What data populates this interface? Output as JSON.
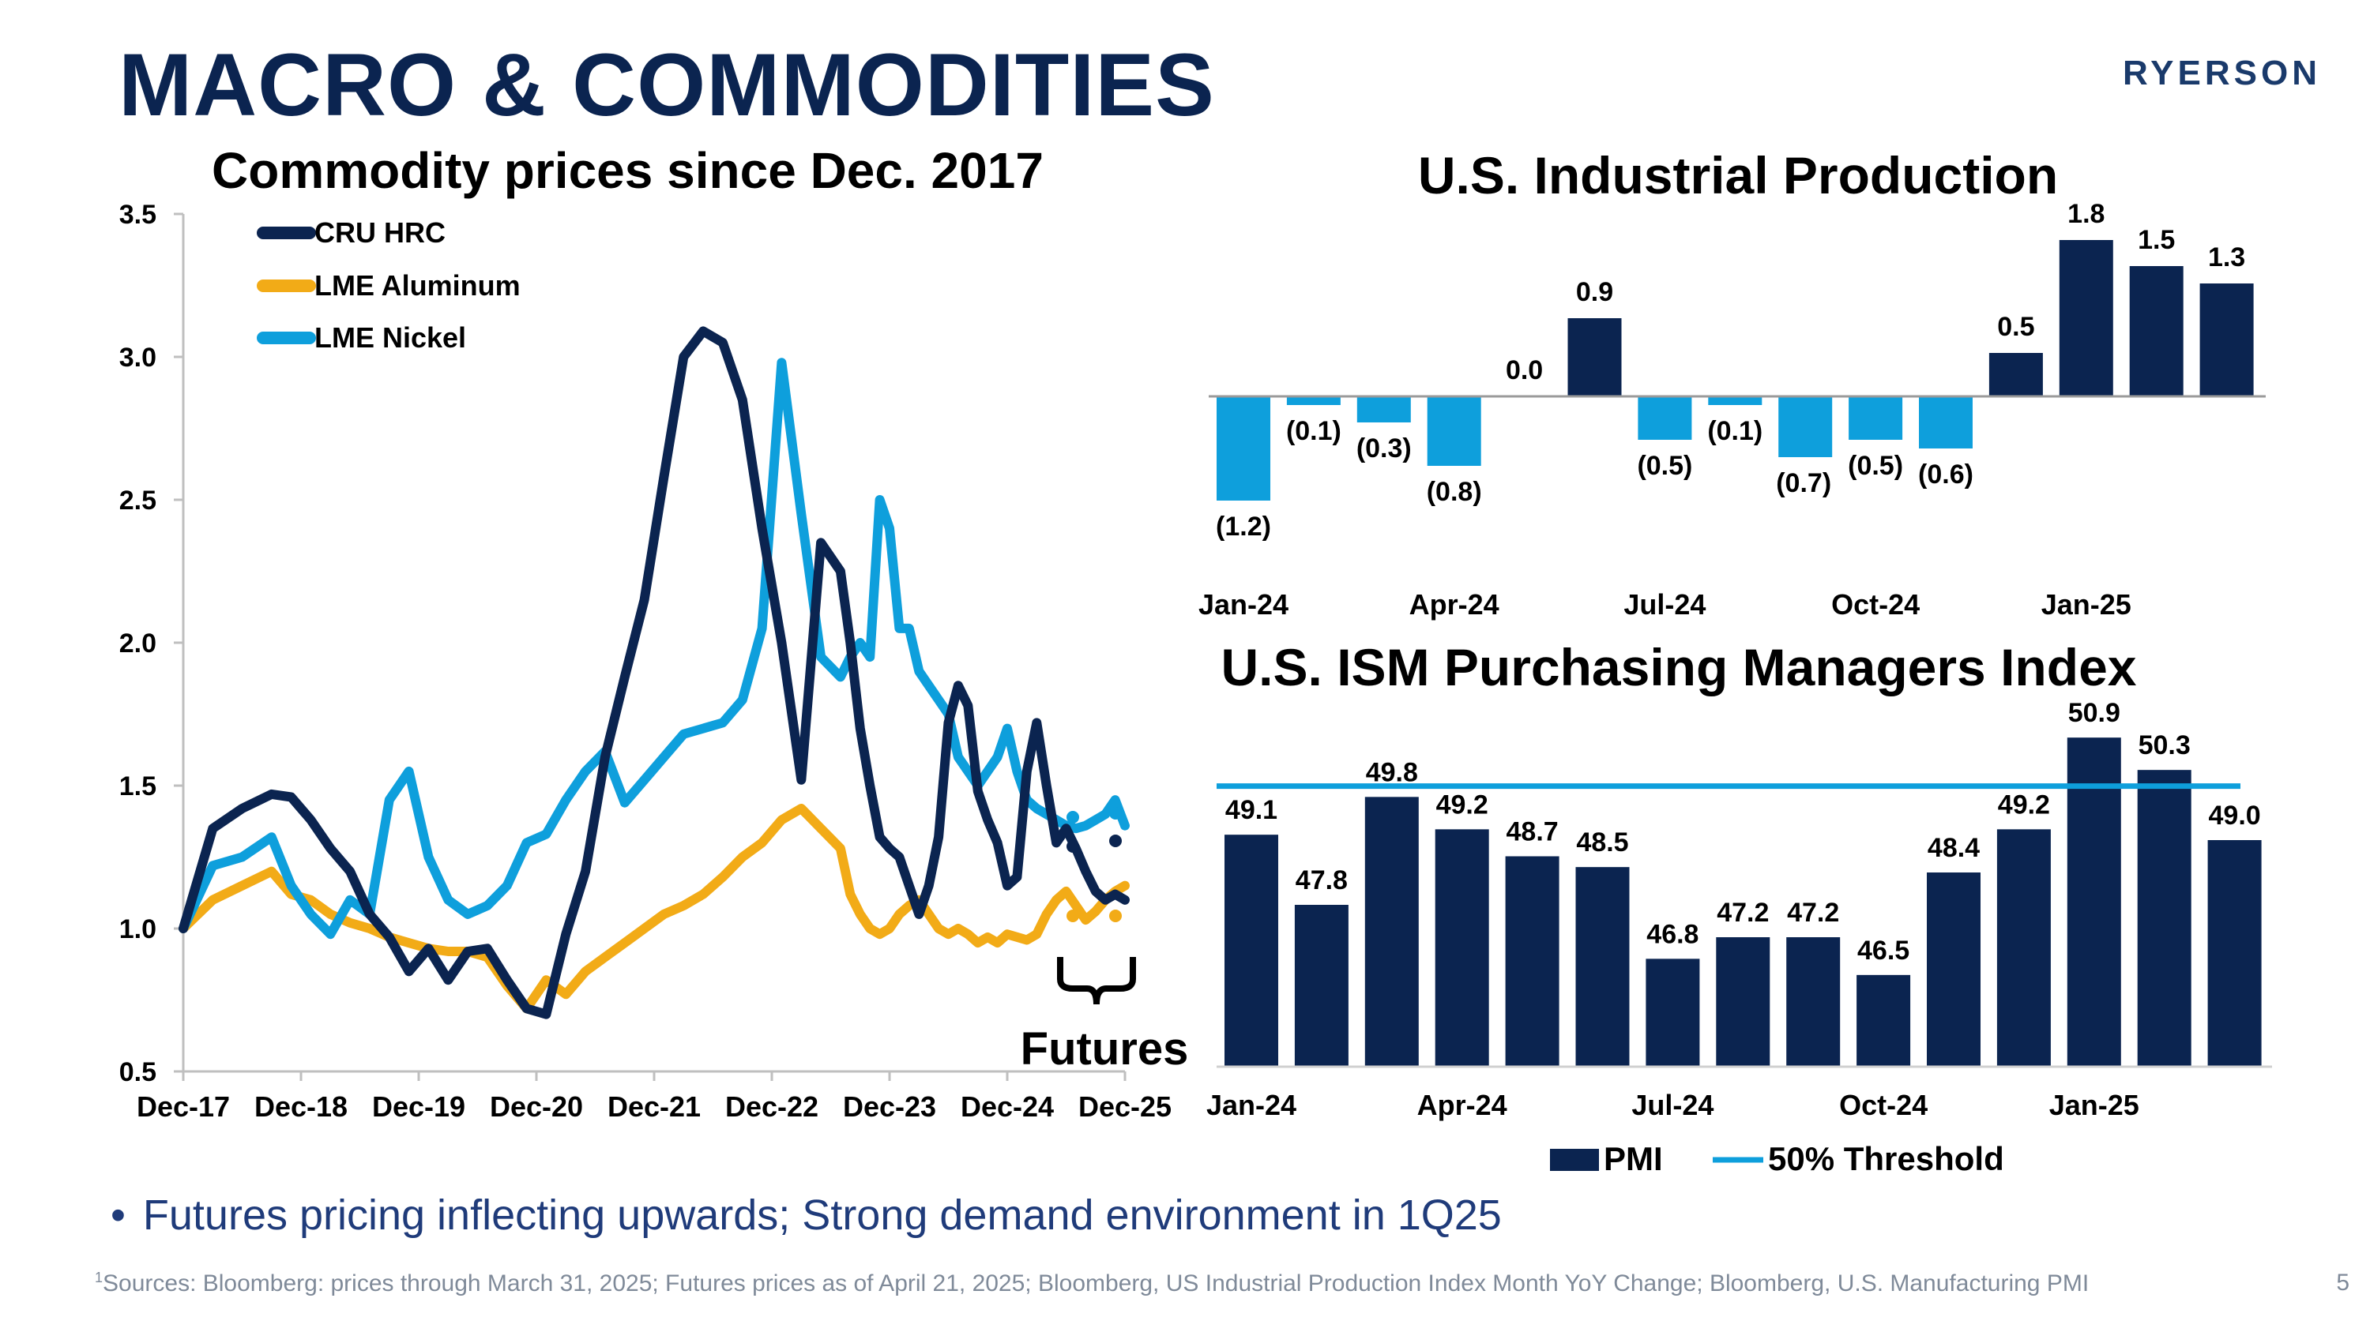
{
  "page_title": "MACRO & COMMODITIES",
  "logo_text": "RYERSON",
  "bullet": "Futures pricing inflecting upwards; Strong demand environment in 1Q25",
  "footnote_sup": "1",
  "footnote": "Sources: Bloomberg: prices through March 31, 2025; Futures prices as of April 21, 2025; Bloomberg, US Industrial Production Index Month YoY Change; Bloomberg, U.S. Manufacturing PMI",
  "page_number": "5",
  "colors": {
    "navy": "#0b2450",
    "blue": "#0e9fdc",
    "gold": "#f2ab17",
    "bar_navy": "#0b2450"
  },
  "chart_data": [
    {
      "type": "line",
      "title": "Commodity prices since Dec. 2017",
      "ylim": [
        0.5,
        3.5
      ],
      "yticks": [
        "3.5",
        "3.0",
        "2.5",
        "2.0",
        "1.5",
        "1.0",
        "0.5"
      ],
      "ytick_values": [
        3.5,
        3.0,
        2.5,
        2.0,
        1.5,
        1.0,
        0.5
      ],
      "xticks": [
        "Dec-17",
        "Dec-18",
        "Dec-19",
        "Dec-20",
        "Dec-21",
        "Dec-22",
        "Dec-23",
        "Dec-24",
        "Dec-25"
      ],
      "xlim": [
        0,
        96
      ],
      "futures_label": "Futures",
      "series": [
        {
          "name": "CRU HRC",
          "color": "#0b2450",
          "x": [
            0,
            3,
            6,
            9,
            11,
            13,
            15,
            17,
            19,
            21,
            23,
            25,
            27,
            29,
            31,
            33,
            35,
            37,
            39,
            41,
            43,
            45,
            47,
            49,
            51,
            53,
            55,
            57,
            59,
            61,
            63,
            65,
            67,
            68,
            69,
            70,
            71,
            72,
            73,
            74,
            75,
            76,
            77,
            78,
            79,
            80,
            81,
            82,
            83,
            84,
            85,
            86,
            87,
            88,
            89,
            90,
            91,
            92,
            93,
            94,
            95,
            96
          ],
          "y": [
            1.0,
            1.35,
            1.42,
            1.47,
            1.46,
            1.38,
            1.28,
            1.2,
            1.05,
            0.97,
            0.85,
            0.93,
            0.82,
            0.92,
            0.93,
            0.82,
            0.72,
            0.7,
            0.98,
            1.2,
            1.6,
            1.88,
            2.15,
            2.58,
            3.0,
            3.09,
            3.05,
            2.85,
            2.4,
            2.0,
            1.52,
            2.35,
            2.25,
            2.0,
            1.7,
            1.5,
            1.32,
            1.28,
            1.25,
            1.15,
            1.05,
            1.15,
            1.32,
            1.72,
            1.85,
            1.78,
            1.48,
            1.38,
            1.3,
            1.15,
            1.18,
            1.55,
            1.72,
            1.5,
            1.3,
            1.35,
            1.28,
            1.2,
            1.13,
            1.1,
            1.12,
            1.1
          ]
        },
        {
          "name": "LME Aluminum",
          "color": "#f2ab17",
          "x": [
            0,
            3,
            6,
            9,
            11,
            13,
            15,
            17,
            19,
            21,
            23,
            25,
            27,
            29,
            31,
            33,
            35,
            37,
            39,
            41,
            43,
            45,
            47,
            49,
            51,
            53,
            55,
            57,
            59,
            61,
            63,
            65,
            67,
            68,
            69,
            70,
            71,
            72,
            73,
            74,
            75,
            76,
            77,
            78,
            79,
            80,
            81,
            82,
            83,
            84,
            85,
            86,
            87,
            88,
            89,
            90,
            91,
            92,
            93,
            94,
            95,
            96
          ],
          "y": [
            1.0,
            1.1,
            1.15,
            1.2,
            1.12,
            1.1,
            1.05,
            1.02,
            1.0,
            0.97,
            0.95,
            0.93,
            0.92,
            0.92,
            0.9,
            0.8,
            0.72,
            0.82,
            0.77,
            0.85,
            0.9,
            0.95,
            1.0,
            1.05,
            1.08,
            1.12,
            1.18,
            1.25,
            1.3,
            1.38,
            1.42,
            1.35,
            1.28,
            1.12,
            1.05,
            1.0,
            0.98,
            1.0,
            1.05,
            1.08,
            1.1,
            1.05,
            1.0,
            0.98,
            1.0,
            0.98,
            0.95,
            0.97,
            0.95,
            0.98,
            0.97,
            0.96,
            0.98,
            1.05,
            1.1,
            1.13,
            1.08,
            1.03,
            1.06,
            1.1,
            1.13,
            1.15
          ]
        },
        {
          "name": "LME Nickel",
          "color": "#0e9fdc",
          "x": [
            0,
            3,
            6,
            9,
            11,
            13,
            15,
            17,
            19,
            21,
            23,
            25,
            27,
            29,
            31,
            33,
            35,
            37,
            39,
            41,
            43,
            45,
            47,
            49,
            51,
            53,
            55,
            57,
            59,
            61,
            63,
            65,
            67,
            68,
            69,
            70,
            71,
            72,
            73,
            74,
            75,
            76,
            77,
            78,
            79,
            80,
            81,
            82,
            83,
            84,
            85,
            86,
            87,
            88,
            89,
            90,
            91,
            92,
            93,
            94,
            95,
            96
          ],
          "y": [
            1.0,
            1.22,
            1.25,
            1.32,
            1.15,
            1.05,
            0.98,
            1.1,
            1.05,
            1.45,
            1.55,
            1.25,
            1.1,
            1.05,
            1.08,
            1.15,
            1.3,
            1.33,
            1.45,
            1.55,
            1.62,
            1.44,
            1.52,
            1.6,
            1.68,
            1.7,
            1.72,
            1.8,
            2.05,
            2.98,
            2.45,
            1.95,
            1.88,
            1.95,
            2.0,
            1.95,
            2.5,
            2.4,
            2.05,
            2.05,
            1.9,
            1.85,
            1.8,
            1.75,
            1.6,
            1.55,
            1.5,
            1.55,
            1.6,
            1.7,
            1.55,
            1.45,
            1.42,
            1.4,
            1.38,
            1.36,
            1.35,
            1.36,
            1.38,
            1.4,
            1.45,
            1.36
          ]
        }
      ]
    },
    {
      "type": "bar",
      "title": "U.S. Industrial Production",
      "values": [
        -1.2,
        -0.1,
        -0.3,
        -0.8,
        0.0,
        0.9,
        -0.5,
        -0.1,
        -0.7,
        -0.5,
        -0.6,
        0.5,
        1.8,
        1.5,
        1.3
      ],
      "labels": [
        "(1.2)",
        "(0.1)",
        "(0.3)",
        "(0.8)",
        "0.0",
        "0.9",
        "(0.5)",
        "(0.1)",
        "(0.7)",
        "(0.5)",
        "(0.6)",
        "0.5",
        "1.8",
        "1.5",
        "1.3"
      ],
      "xticks": [
        "Jan-24",
        "Apr-24",
        "Jul-24",
        "Oct-24",
        "Jan-25"
      ],
      "xtick_index": [
        0,
        3,
        6,
        9,
        12
      ]
    },
    {
      "type": "bar",
      "title": "U.S. ISM Purchasing Managers Index",
      "values": [
        49.1,
        47.8,
        49.8,
        49.2,
        48.7,
        48.5,
        46.8,
        47.2,
        47.2,
        46.5,
        48.4,
        49.2,
        50.9,
        50.3,
        49.0
      ],
      "labels": [
        "49.1",
        "47.8",
        "49.8",
        "49.2",
        "48.7",
        "48.5",
        "46.8",
        "47.2",
        "47.2",
        "46.5",
        "48.4",
        "49.2",
        "50.9",
        "50.3",
        "49.0"
      ],
      "ylim": [
        44.8,
        51.4
      ],
      "threshold": 50,
      "xticks": [
        "Jan-24",
        "Apr-24",
        "Jul-24",
        "Oct-24",
        "Jan-25"
      ],
      "xtick_index": [
        0,
        3,
        6,
        9,
        12
      ],
      "legend": [
        {
          "name": "PMI",
          "kind": "bar",
          "color": "#0b2450"
        },
        {
          "name": "50% Threshold",
          "kind": "line",
          "color": "#0e9fdc"
        }
      ]
    }
  ]
}
